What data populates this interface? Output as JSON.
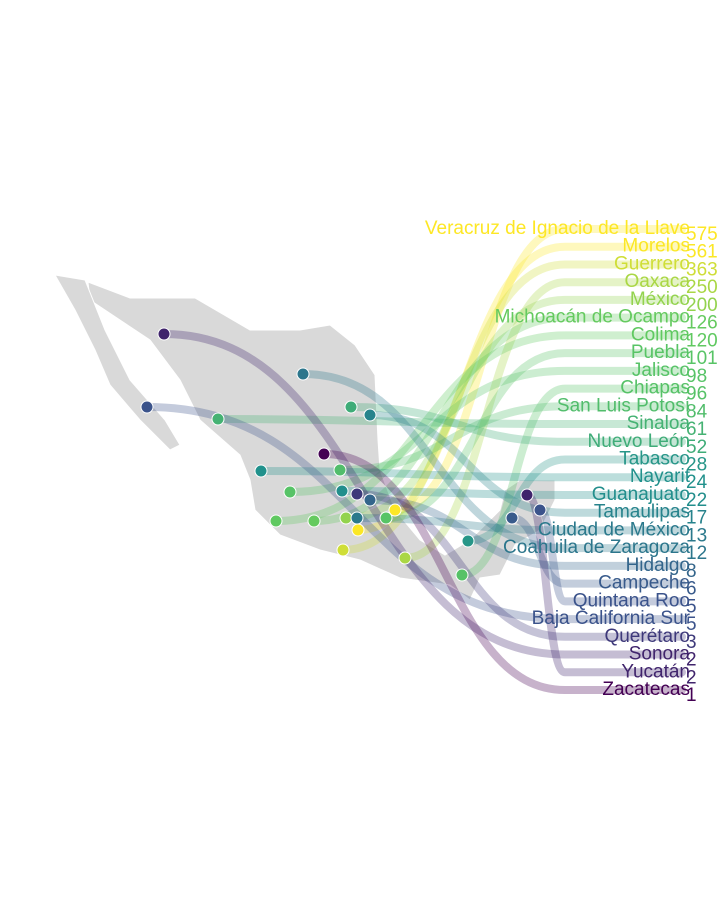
{
  "chart_data": {
    "type": "bump-map",
    "categories": [
      "Veracruz de Ignacio de la Llave",
      "Morelos",
      "Guerrero",
      "Oaxaca",
      "México",
      "Michoacán de Ocampo",
      "Colima",
      "Puebla",
      "Jalisco",
      "Chiapas",
      "San Luis Potosí",
      "Sinaloa",
      "Nuevo León",
      "Tabasco",
      "Nayarit",
      "Guanajuato",
      "Tamaulipas",
      "Ciudad de México",
      "Coahuila de Zaragoza",
      "Hidalgo",
      "Campeche",
      "Quintana Roo",
      "Baja California Sur",
      "Querétaro",
      "Sonora",
      "Yucatán",
      "Zacatecas"
    ],
    "values": [
      575,
      561,
      363,
      250,
      200,
      126,
      120,
      101,
      98,
      96,
      84,
      61,
      52,
      28,
      24,
      22,
      17,
      13,
      12,
      8,
      6,
      5,
      5,
      3,
      2,
      2,
      1
    ],
    "color_scale": [
      "#440154",
      "#3b528b",
      "#21918c",
      "#5ec962",
      "#fde725"
    ],
    "scale": "log"
  }
}
